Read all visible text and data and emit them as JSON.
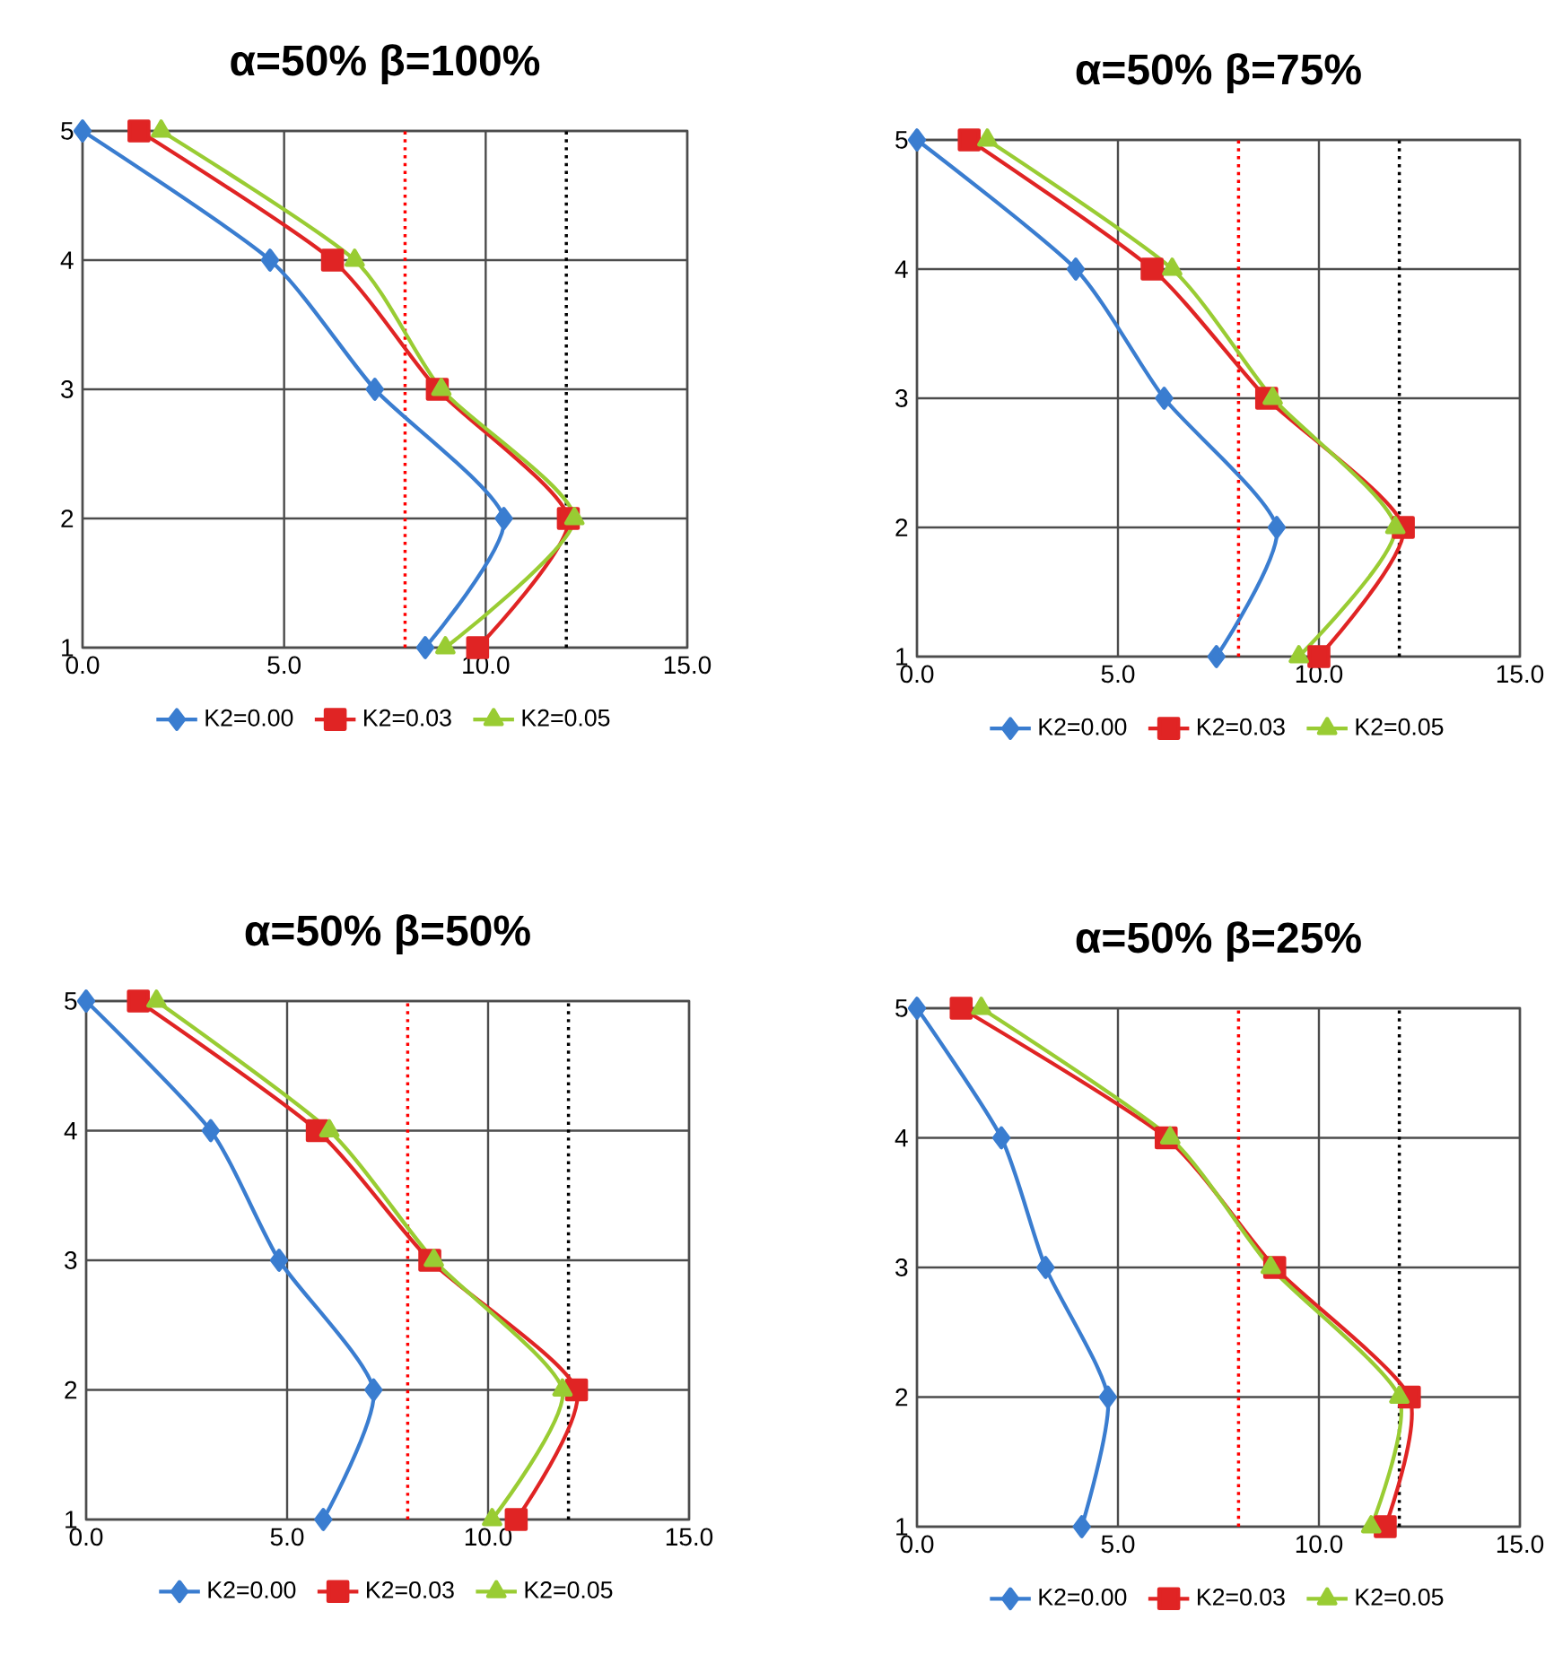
{
  "chart_data": [
    {
      "type": "line",
      "title": "α=50% β=100%",
      "xlim": [
        0,
        15
      ],
      "xticks": [
        {
          "value": 0,
          "label": "0.0"
        },
        {
          "value": 5,
          "label": "5.0"
        },
        {
          "value": 10,
          "label": "10.0"
        },
        {
          "value": 15,
          "label": "15.0"
        }
      ],
      "ylim": [
        1,
        5
      ],
      "yticks": [
        1,
        2,
        3,
        4,
        5
      ],
      "grid": true,
      "legend": "bottom",
      "ref_lines": [
        {
          "axis": "x",
          "value": 8,
          "color": "#ff0000",
          "line_style": "dotted"
        },
        {
          "axis": "x",
          "value": 12,
          "color": "#000000",
          "line_style": "dotted"
        }
      ],
      "series": [
        {
          "name": "K2=0.00",
          "color": "#3a7dd0",
          "marker": "diamond",
          "x": [
            8.5,
            10.45,
            7.25,
            4.65,
            0
          ],
          "values": [
            1,
            2,
            3,
            4,
            5
          ]
        },
        {
          "name": "K2=0.03",
          "color": "#e02424",
          "marker": "square",
          "x": [
            9.8,
            12.05,
            8.8,
            6.2,
            1.4
          ],
          "values": [
            1,
            2,
            3,
            4,
            5
          ]
        },
        {
          "name": "K2=0.05",
          "color": "#99cc33",
          "marker": "triangle",
          "x": [
            9.0,
            12.2,
            8.9,
            6.75,
            1.95
          ],
          "values": [
            1,
            2,
            3,
            4,
            5
          ]
        }
      ]
    },
    {
      "type": "line",
      "title": "α=50% β=75%",
      "xlim": [
        0,
        15
      ],
      "xticks": [
        {
          "value": 0,
          "label": "0.0"
        },
        {
          "value": 5,
          "label": "5.0"
        },
        {
          "value": 10,
          "label": "10.0"
        },
        {
          "value": 15,
          "label": "15.0"
        }
      ],
      "ylim": [
        1,
        5
      ],
      "yticks": [
        1,
        2,
        3,
        4,
        5
      ],
      "grid": true,
      "legend": "bottom",
      "ref_lines": [
        {
          "axis": "x",
          "value": 8,
          "color": "#ff0000",
          "line_style": "dotted"
        },
        {
          "axis": "x",
          "value": 12,
          "color": "#000000",
          "line_style": "dotted"
        }
      ],
      "series": [
        {
          "name": "K2=0.00",
          "color": "#3a7dd0",
          "marker": "diamond",
          "x": [
            7.45,
            8.95,
            6.15,
            3.95,
            0
          ],
          "values": [
            1,
            2,
            3,
            4,
            5
          ]
        },
        {
          "name": "K2=0.03",
          "color": "#e02424",
          "marker": "square",
          "x": [
            10.0,
            12.1,
            8.7,
            5.85,
            1.3
          ],
          "values": [
            1,
            2,
            3,
            4,
            5
          ]
        },
        {
          "name": "K2=0.05",
          "color": "#99cc33",
          "marker": "triangle",
          "x": [
            9.5,
            11.9,
            8.85,
            6.35,
            1.75
          ],
          "values": [
            1,
            2,
            3,
            4,
            5
          ]
        }
      ]
    },
    {
      "type": "line",
      "title": "α=50% β=50%",
      "xlim": [
        0,
        15
      ],
      "xticks": [
        {
          "value": 0,
          "label": "0.0"
        },
        {
          "value": 5,
          "label": "5.0"
        },
        {
          "value": 10,
          "label": "10.0"
        },
        {
          "value": 15,
          "label": "15.0"
        }
      ],
      "ylim": [
        1,
        5
      ],
      "yticks": [
        1,
        2,
        3,
        4,
        5
      ],
      "grid": true,
      "legend": "bottom",
      "ref_lines": [
        {
          "axis": "x",
          "value": 8,
          "color": "#ff0000",
          "line_style": "dotted"
        },
        {
          "axis": "x",
          "value": 12,
          "color": "#000000",
          "line_style": "dotted"
        }
      ],
      "series": [
        {
          "name": "K2=0.00",
          "color": "#3a7dd0",
          "marker": "diamond",
          "x": [
            5.9,
            7.15,
            4.8,
            3.1,
            0
          ],
          "values": [
            1,
            2,
            3,
            4,
            5
          ]
        },
        {
          "name": "K2=0.03",
          "color": "#e02424",
          "marker": "square",
          "x": [
            10.7,
            12.2,
            8.55,
            5.75,
            1.3
          ],
          "values": [
            1,
            2,
            3,
            4,
            5
          ]
        },
        {
          "name": "K2=0.05",
          "color": "#99cc33",
          "marker": "triangle",
          "x": [
            10.1,
            11.85,
            8.65,
            6.05,
            1.75
          ],
          "values": [
            1,
            2,
            3,
            4,
            5
          ]
        }
      ]
    },
    {
      "type": "line",
      "title": "α=50% β=25%",
      "xlim": [
        0,
        15
      ],
      "xticks": [
        {
          "value": 0,
          "label": "0.0"
        },
        {
          "value": 5,
          "label": "5.0"
        },
        {
          "value": 10,
          "label": "10.0"
        },
        {
          "value": 15,
          "label": "15.0"
        }
      ],
      "ylim": [
        1,
        5
      ],
      "yticks": [
        1,
        2,
        3,
        4,
        5
      ],
      "grid": true,
      "legend": "bottom",
      "ref_lines": [
        {
          "axis": "x",
          "value": 8,
          "color": "#ff0000",
          "line_style": "dotted"
        },
        {
          "axis": "x",
          "value": 12,
          "color": "#000000",
          "line_style": "dotted"
        }
      ],
      "series": [
        {
          "name": "K2=0.00",
          "color": "#3a7dd0",
          "marker": "diamond",
          "x": [
            4.1,
            4.75,
            3.2,
            2.1,
            0
          ],
          "values": [
            1,
            2,
            3,
            4,
            5
          ]
        },
        {
          "name": "K2=0.03",
          "color": "#e02424",
          "marker": "square",
          "x": [
            11.65,
            12.25,
            8.9,
            6.2,
            1.1
          ],
          "values": [
            1,
            2,
            3,
            4,
            5
          ]
        },
        {
          "name": "K2=0.05",
          "color": "#99cc33",
          "marker": "triangle",
          "x": [
            11.3,
            12.0,
            8.8,
            6.3,
            1.6
          ],
          "values": [
            1,
            2,
            3,
            4,
            5
          ]
        }
      ]
    }
  ]
}
